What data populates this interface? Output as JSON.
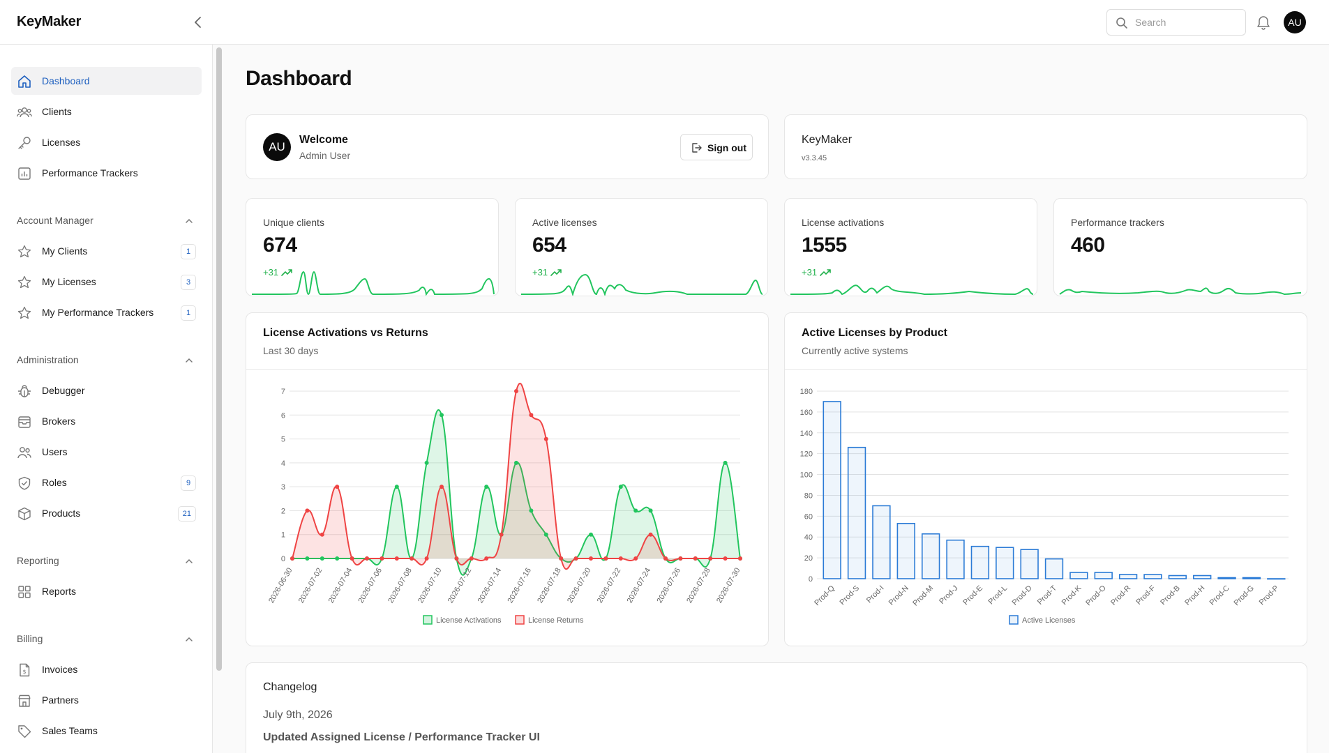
{
  "app": {
    "name": "KeyMaker"
  },
  "header": {
    "search_placeholder": "Search",
    "avatar_initials": "AU"
  },
  "sidebar": {
    "items": [
      {
        "label": "Dashboard",
        "icon": "home-icon",
        "active": true
      },
      {
        "label": "Clients",
        "icon": "users-icon"
      },
      {
        "label": "Licenses",
        "icon": "key-icon"
      },
      {
        "label": "Performance Trackers",
        "icon": "bar-chart-icon"
      }
    ],
    "groups": [
      {
        "title": "Account Manager",
        "items": [
          {
            "label": "My Clients",
            "icon": "star-icon",
            "badge": "1"
          },
          {
            "label": "My Licenses",
            "icon": "star-icon",
            "badge": "3"
          },
          {
            "label": "My Performance Trackers",
            "icon": "star-icon",
            "badge": "1"
          }
        ]
      },
      {
        "title": "Administration",
        "items": [
          {
            "label": "Debugger",
            "icon": "bug-icon"
          },
          {
            "label": "Brokers",
            "icon": "inbox-icon"
          },
          {
            "label": "Users",
            "icon": "users-icon"
          },
          {
            "label": "Roles",
            "icon": "shield-icon",
            "badge": "9"
          },
          {
            "label": "Products",
            "icon": "box-icon",
            "badge": "21"
          }
        ]
      },
      {
        "title": "Reporting",
        "items": [
          {
            "label": "Reports",
            "icon": "grid-icon"
          }
        ]
      },
      {
        "title": "Billing",
        "items": [
          {
            "label": "Invoices",
            "icon": "invoice-icon"
          },
          {
            "label": "Partners",
            "icon": "store-icon"
          },
          {
            "label": "Sales Teams",
            "icon": "tag-icon"
          }
        ]
      }
    ]
  },
  "main": {
    "title": "Dashboard",
    "welcome": {
      "avatar": "AU",
      "title": "Welcome",
      "subtitle": "Admin User",
      "signout_label": "Sign out"
    },
    "app_info": {
      "name": "KeyMaker",
      "version": "v3.3.45"
    },
    "stats": [
      {
        "label": "Unique clients",
        "value": "674",
        "delta": "+31"
      },
      {
        "label": "Active licenses",
        "value": "654",
        "delta": "+31"
      },
      {
        "label": "License activations",
        "value": "1555",
        "delta": "+31"
      },
      {
        "label": "Performance trackers",
        "value": "460",
        "delta": ""
      }
    ],
    "changelog": {
      "title": "Changelog",
      "date": "July 9th, 2026",
      "heading": "Updated Assigned License / Performance Tracker UI"
    }
  },
  "colors": {
    "accent": "#1d5fbf",
    "green": "#22c55e",
    "red": "#ef4444",
    "blue": "#2b7bd6"
  },
  "chart_data": [
    {
      "type": "area",
      "title": "License Activations vs Returns",
      "subtitle": "Last 30 days",
      "categories": [
        "2026-06-30",
        "2026-07-01",
        "2026-07-02",
        "2026-07-03",
        "2026-07-04",
        "2026-07-05",
        "2026-07-06",
        "2026-07-07",
        "2026-07-08",
        "2026-07-09",
        "2026-07-10",
        "2026-07-11",
        "2026-07-12",
        "2026-07-13",
        "2026-07-14",
        "2026-07-15",
        "2026-07-16",
        "2026-07-17",
        "2026-07-18",
        "2026-07-19",
        "2026-07-20",
        "2026-07-21",
        "2026-07-22",
        "2026-07-23",
        "2026-07-24",
        "2026-07-25",
        "2026-07-26",
        "2026-07-27",
        "2026-07-28",
        "2026-07-29",
        "2026-07-30"
      ],
      "tick_labels": [
        "2026-06-30",
        "2026-07-02",
        "2026-07-04",
        "2026-07-06",
        "2026-07-08",
        "2026-07-10",
        "2026-07-12",
        "2026-07-14",
        "2026-07-16",
        "2026-07-18",
        "2026-07-20",
        "2026-07-22",
        "2026-07-24",
        "2026-07-26",
        "2026-07-28",
        "2026-07-30"
      ],
      "series": [
        {
          "name": "License Activations",
          "color": "#22c55e",
          "values": [
            0,
            0,
            0,
            0,
            0,
            0,
            0,
            3,
            0,
            4,
            6,
            0,
            0,
            3,
            1,
            4,
            2,
            1,
            0,
            0,
            1,
            0,
            3,
            2,
            2,
            0,
            0,
            0,
            0,
            4,
            0
          ]
        },
        {
          "name": "License Returns",
          "color": "#ef4444",
          "values": [
            0,
            2,
            1,
            3,
            0,
            0,
            0,
            0,
            0,
            0,
            3,
            0,
            0,
            0,
            1,
            7,
            6,
            5,
            0,
            0,
            0,
            0,
            0,
            0,
            1,
            0,
            0,
            0,
            0,
            0,
            0
          ]
        }
      ],
      "ylim": [
        0,
        7
      ],
      "yticks": [
        0,
        1,
        2,
        3,
        4,
        5,
        6,
        7
      ],
      "grid": true,
      "legend": "bottom"
    },
    {
      "type": "bar",
      "title": "Active Licenses by Product",
      "subtitle": "Currently active systems",
      "categories": [
        "Prod-Q",
        "Prod-S",
        "Prod-I",
        "Prod-N",
        "Prod-M",
        "Prod-J",
        "Prod-E",
        "Prod-L",
        "Prod-D",
        "Prod-T",
        "Prod-K",
        "Prod-O",
        "Prod-R",
        "Prod-F",
        "Prod-B",
        "Prod-H",
        "Prod-C",
        "Prod-G",
        "Prod-P"
      ],
      "series": [
        {
          "name": "Active Licenses",
          "color": "#2b7bd6",
          "values": [
            170,
            126,
            70,
            53,
            43,
            37,
            31,
            30,
            28,
            19,
            6,
            6,
            4,
            4,
            3,
            3,
            1,
            1,
            0
          ]
        }
      ],
      "ylim": [
        0,
        180
      ],
      "yticks": [
        0,
        20,
        40,
        60,
        80,
        100,
        120,
        140,
        160,
        180
      ],
      "grid": true,
      "legend": "bottom"
    }
  ]
}
